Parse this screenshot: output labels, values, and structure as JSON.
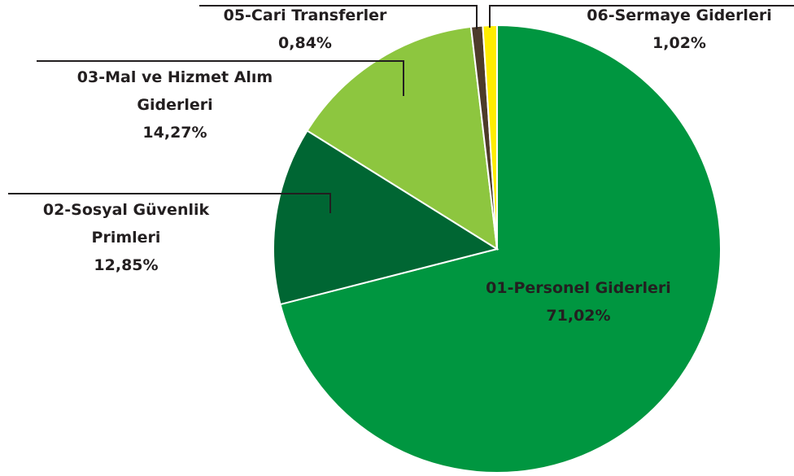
{
  "chart_data": {
    "type": "pie",
    "categories": [
      "01-Personel Giderleri",
      "02-Sosyal Güvenlik Primleri",
      "03-Mal ve Hizmet Alım Giderleri",
      "05-Cari Transferler",
      "06-Sermaye Giderleri"
    ],
    "values": [
      71.02,
      12.85,
      14.27,
      0.84,
      1.02
    ],
    "value_labels": [
      "71,02%",
      "12,85%",
      "14,27%",
      "0,84%",
      "1,02%"
    ],
    "colors": [
      "#009640",
      "#006633",
      "#8dc63f",
      "#4d3b2a",
      "#ffed00"
    ]
  }
}
